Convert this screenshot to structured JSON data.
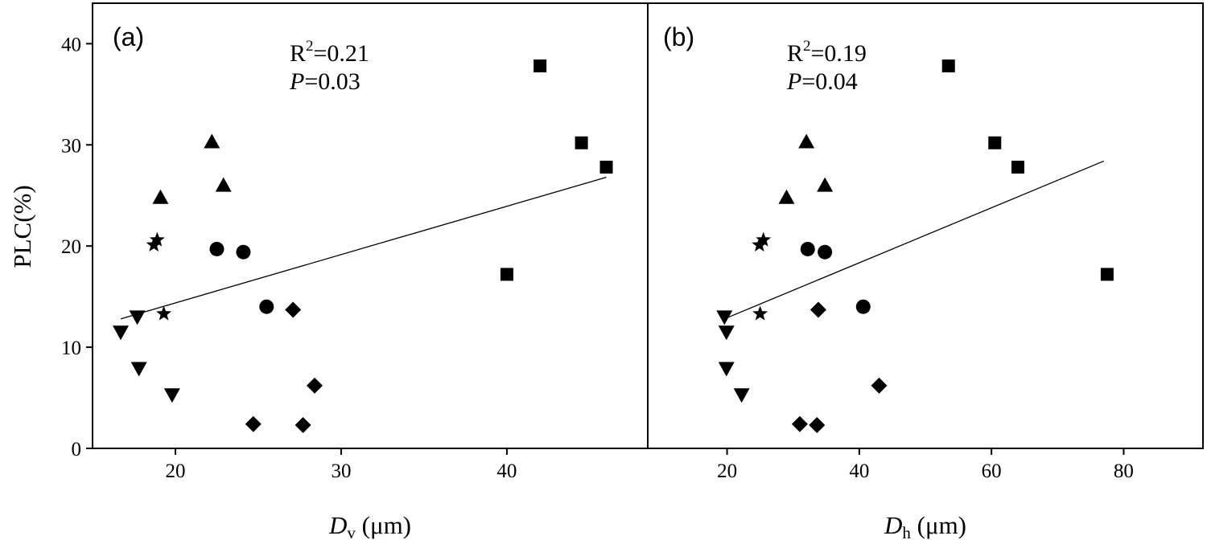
{
  "chart_data": [
    {
      "type": "scatter",
      "panel_label": "(a)",
      "stats": {
        "r2_prefix": "R",
        "r2_sup": "2",
        "r2_value": "=0.21",
        "p_symbol": "P",
        "p_value": "=0.03"
      },
      "xlabel": {
        "main": "D",
        "sub": "v",
        "unit": " (μm)"
      },
      "ylabel": "PLC(%)",
      "xlim": [
        15,
        48.5
      ],
      "ylim": [
        0,
        44
      ],
      "xticks": [
        20,
        30,
        40
      ],
      "yticks": [
        0,
        10,
        20,
        30,
        40
      ],
      "series": [
        {
          "marker": "square",
          "points": [
            [
              42,
              37.8
            ],
            [
              44.5,
              30.2
            ],
            [
              46,
              27.8
            ],
            [
              40,
              17.2
            ]
          ]
        },
        {
          "marker": "triangle-up",
          "points": [
            [
              22.2,
              30.3
            ],
            [
              22.9,
              26
            ],
            [
              19.1,
              24.8
            ]
          ]
        },
        {
          "marker": "circle",
          "points": [
            [
              22.5,
              19.7
            ],
            [
              24.1,
              19.4
            ],
            [
              25.5,
              14
            ]
          ]
        },
        {
          "marker": "star",
          "points": [
            [
              18.7,
              20.1
            ],
            [
              18.9,
              20.6
            ],
            [
              19.3,
              13.3
            ]
          ]
        },
        {
          "marker": "diamond",
          "points": [
            [
              27.1,
              13.7
            ],
            [
              28.4,
              6.2
            ],
            [
              24.7,
              2.4
            ],
            [
              27.7,
              2.3
            ]
          ]
        },
        {
          "marker": "triangle-down",
          "points": [
            [
              17.7,
              13
            ],
            [
              16.7,
              11.5
            ],
            [
              17.8,
              7.9
            ],
            [
              19.8,
              5.3
            ]
          ]
        }
      ],
      "trendline": [
        [
          16.7,
          12.8
        ],
        [
          46,
          26.8
        ]
      ]
    },
    {
      "type": "scatter",
      "panel_label": "(b)",
      "stats": {
        "r2_prefix": "R",
        "r2_sup": "2",
        "r2_value": "=0.19",
        "p_symbol": "P",
        "p_value": "=0.04"
      },
      "xlabel": {
        "main": "D",
        "sub": "h",
        "unit": " (μm)"
      },
      "ylabel": "",
      "xlim": [
        8,
        92
      ],
      "ylim": [
        0,
        44
      ],
      "xticks": [
        20,
        40,
        60,
        80
      ],
      "yticks": [
        0,
        10,
        20,
        30,
        40
      ],
      "series": [
        {
          "marker": "square",
          "points": [
            [
              53.5,
              37.8
            ],
            [
              60.5,
              30.2
            ],
            [
              64,
              27.8
            ],
            [
              77.5,
              17.2
            ]
          ]
        },
        {
          "marker": "triangle-up",
          "points": [
            [
              32,
              30.3
            ],
            [
              34.8,
              26
            ],
            [
              29,
              24.8
            ]
          ]
        },
        {
          "marker": "circle",
          "points": [
            [
              32.2,
              19.7
            ],
            [
              34.8,
              19.4
            ],
            [
              40.6,
              14
            ]
          ]
        },
        {
          "marker": "star",
          "points": [
            [
              24.9,
              20.1
            ],
            [
              25.5,
              20.6
            ],
            [
              25,
              13.3
            ]
          ]
        },
        {
          "marker": "diamond",
          "points": [
            [
              33.8,
              13.7
            ],
            [
              43,
              6.2
            ],
            [
              31,
              2.4
            ],
            [
              33.6,
              2.3
            ]
          ]
        },
        {
          "marker": "triangle-down",
          "points": [
            [
              19.6,
              13
            ],
            [
              19.9,
              11.5
            ],
            [
              19.9,
              7.9
            ],
            [
              22.2,
              5.3
            ]
          ]
        }
      ],
      "trendline": [
        [
          19.6,
          12.8
        ],
        [
          77,
          28.4
        ]
      ]
    }
  ]
}
